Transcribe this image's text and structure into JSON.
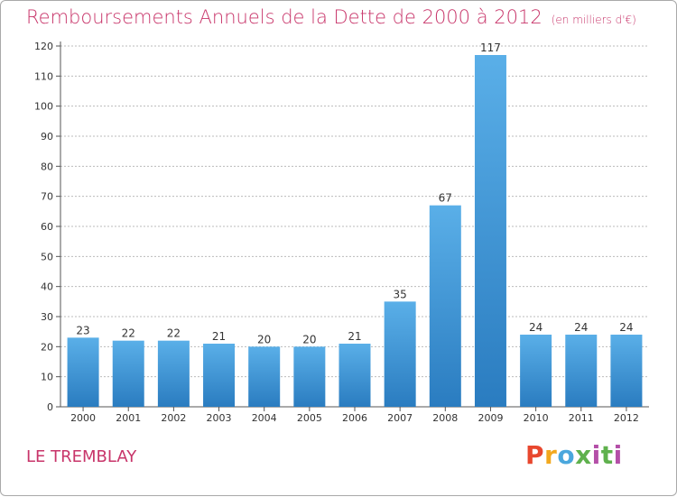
{
  "header": {
    "title": "Remboursements Annuels de la Dette de 2000 à 2012",
    "subtitle": "(en milliers d'€)"
  },
  "footer": {
    "town": "LE TREMBLAY",
    "logo": "Proxiti"
  },
  "colors": {
    "accent": "#c8356a",
    "bar_top": "#5aafe8",
    "bar_bottom": "#2a7cc0",
    "grid": "#bbbbbb"
  },
  "chart_data": {
    "type": "bar",
    "categories": [
      "2000",
      "2001",
      "2002",
      "2003",
      "2004",
      "2005",
      "2006",
      "2007",
      "2008",
      "2009",
      "2010",
      "2011",
      "2012"
    ],
    "values": [
      23,
      22,
      22,
      21,
      20,
      20,
      21,
      35,
      67,
      117,
      24,
      24,
      24
    ],
    "data_labels": [
      "23",
      "22",
      "22",
      "21",
      "20",
      "20",
      "21",
      "35",
      "67",
      "117",
      "24",
      "24",
      "24"
    ],
    "yticks": [
      "0",
      "10",
      "20",
      "30",
      "40",
      "50",
      "60",
      "70",
      "80",
      "90",
      "100",
      "110",
      "120"
    ],
    "ylim": [
      0,
      120
    ],
    "grid": true
  }
}
